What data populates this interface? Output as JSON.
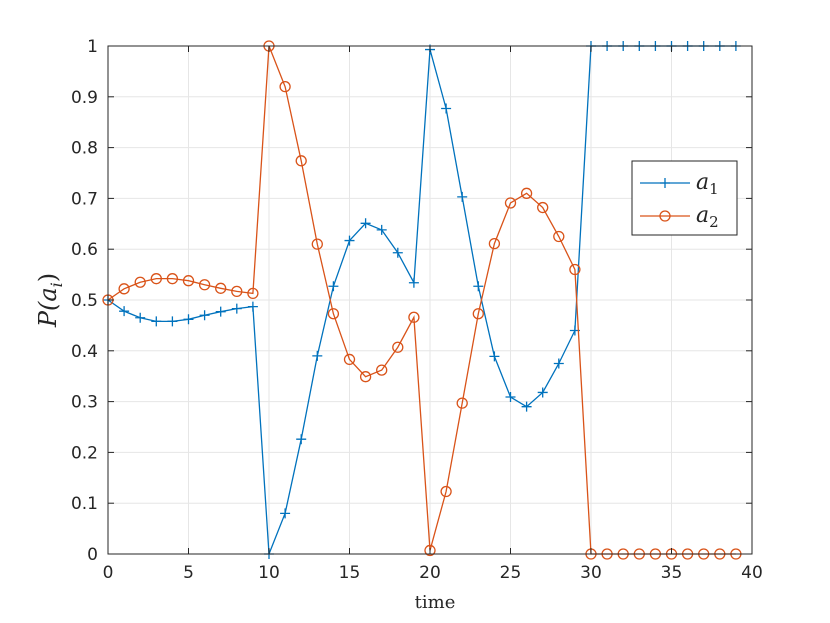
{
  "chart_data": {
    "type": "line",
    "xlabel": "time",
    "ylabel": "P(a_i)",
    "ylabel_parts": {
      "main": "P(",
      "var": "a",
      "sub": "i",
      "close": ")"
    },
    "xlim": [
      0,
      40
    ],
    "ylim": [
      0,
      1
    ],
    "xticks": [
      0,
      5,
      10,
      15,
      20,
      25,
      30,
      35,
      40
    ],
    "yticks": [
      0,
      0.1,
      0.2,
      0.3,
      0.4,
      0.5,
      0.6,
      0.7,
      0.8,
      0.9,
      1
    ],
    "grid": true,
    "legend_position": "right",
    "series": [
      {
        "name": "a_1",
        "label_main": "a",
        "label_sub": "1",
        "color": "#0072BD",
        "marker": "plus",
        "x": [
          0,
          1,
          2,
          3,
          4,
          5,
          6,
          7,
          8,
          9,
          10,
          11,
          12,
          13,
          14,
          15,
          16,
          17,
          18,
          19,
          20,
          21,
          22,
          23,
          24,
          25,
          26,
          27,
          28,
          29,
          30,
          31,
          32,
          33,
          34,
          35,
          36,
          37,
          38,
          39
        ],
        "values": [
          0.5,
          0.478,
          0.465,
          0.458,
          0.458,
          0.462,
          0.47,
          0.477,
          0.483,
          0.487,
          0.0,
          0.08,
          0.226,
          0.39,
          0.527,
          0.617,
          0.651,
          0.638,
          0.593,
          0.534,
          0.993,
          0.877,
          0.703,
          0.527,
          0.389,
          0.309,
          0.29,
          0.318,
          0.375,
          0.44,
          1.0,
          1.0,
          1.0,
          1.0,
          1.0,
          1.0,
          1.0,
          1.0,
          1.0,
          1.0
        ]
      },
      {
        "name": "a_2",
        "label_main": "a",
        "label_sub": "2",
        "color": "#D95319",
        "marker": "circle",
        "x": [
          0,
          1,
          2,
          3,
          4,
          5,
          6,
          7,
          8,
          9,
          10,
          11,
          12,
          13,
          14,
          15,
          16,
          17,
          18,
          19,
          20,
          21,
          22,
          23,
          24,
          25,
          26,
          27,
          28,
          29,
          30,
          31,
          32,
          33,
          34,
          35,
          36,
          37,
          38,
          39
        ],
        "values": [
          0.5,
          0.522,
          0.535,
          0.542,
          0.542,
          0.538,
          0.53,
          0.523,
          0.517,
          0.513,
          1.0,
          0.92,
          0.774,
          0.61,
          0.473,
          0.383,
          0.349,
          0.362,
          0.407,
          0.466,
          0.007,
          0.123,
          0.297,
          0.473,
          0.611,
          0.691,
          0.71,
          0.682,
          0.625,
          0.56,
          0.0,
          0.0,
          0.0,
          0.0,
          0.0,
          0.0,
          0.0,
          0.0,
          0.0,
          0.0
        ]
      }
    ]
  }
}
